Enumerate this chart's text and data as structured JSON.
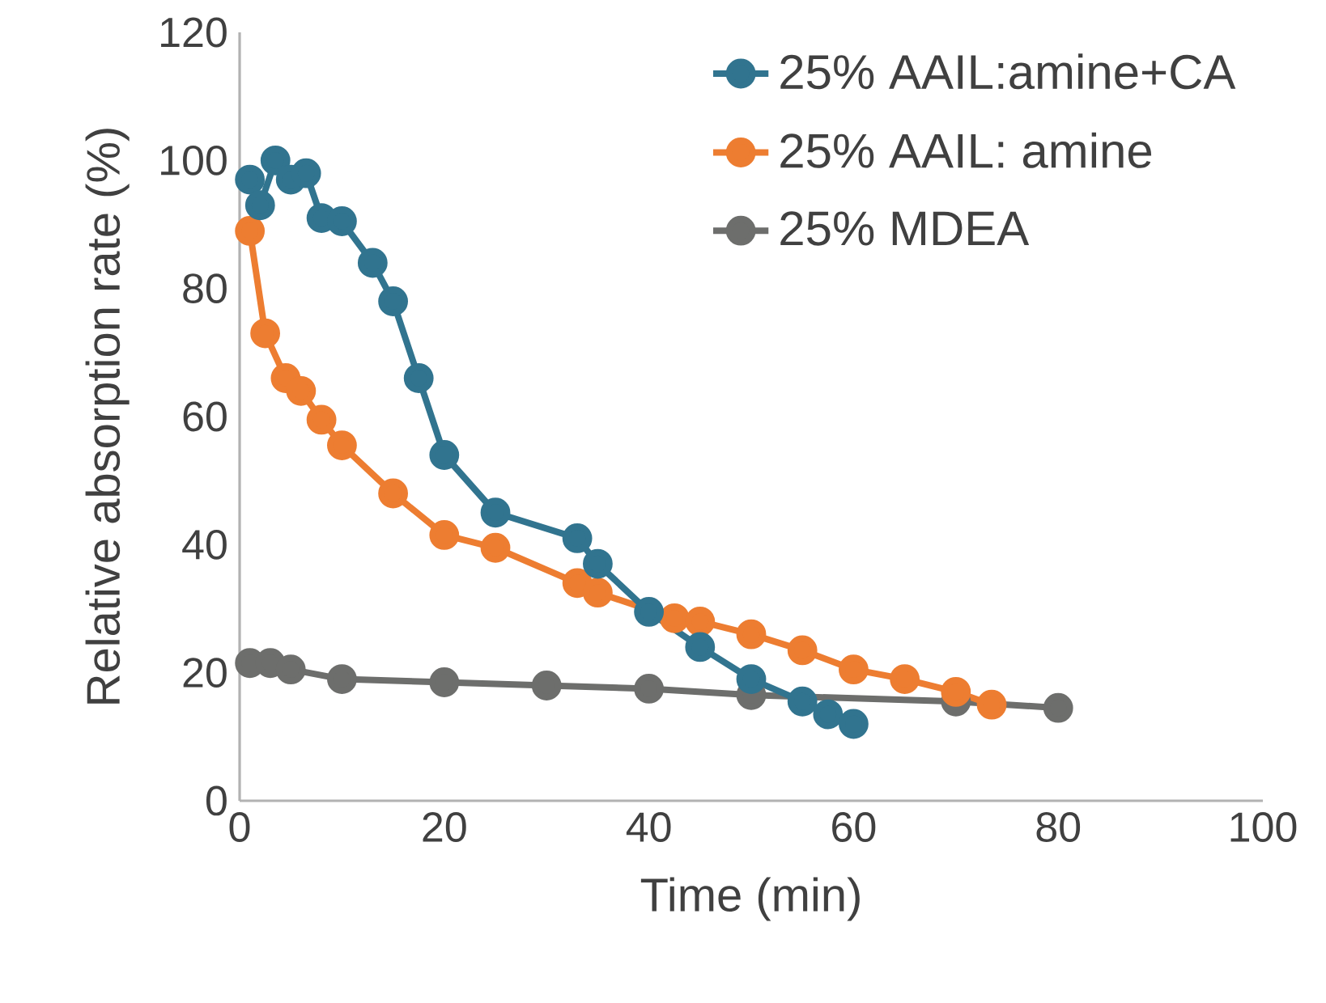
{
  "chart_data": {
    "type": "line",
    "xlabel": "Time (min)",
    "ylabel": "Relative absorption rate (%)",
    "xlim": [
      0,
      100
    ],
    "ylim": [
      0,
      120
    ],
    "xticks": [
      0,
      20,
      40,
      60,
      80,
      100
    ],
    "yticks": [
      0,
      20,
      40,
      60,
      80,
      100,
      120
    ],
    "grid": false,
    "legend": "top right",
    "marker": "circle",
    "line_style": "solid",
    "series": [
      {
        "name": "25% AAIL:amine+CA",
        "color": "#31748f",
        "x": [
          1,
          2,
          3.5,
          5,
          6.5,
          8,
          10,
          13,
          15,
          17.5,
          20,
          25,
          33,
          35,
          40,
          45,
          50,
          55,
          57.5,
          60
        ],
        "values": [
          97,
          93,
          100,
          97,
          98,
          91,
          90.5,
          84,
          78,
          66,
          54,
          45,
          41,
          37,
          29.5,
          24,
          19,
          15.5,
          13.5,
          12
        ]
      },
      {
        "name": "25% AAIL: amine",
        "color": "#ed7d31",
        "x": [
          1,
          2.5,
          4.5,
          6,
          8,
          10,
          15,
          20,
          25,
          33,
          35,
          42.5,
          45,
          50,
          55,
          60,
          65,
          70,
          73.5
        ],
        "values": [
          89,
          73,
          66,
          64,
          59.5,
          55.5,
          48,
          41.5,
          39.5,
          34,
          32.5,
          28.5,
          28,
          26,
          23.5,
          20.5,
          19,
          17,
          15
        ]
      },
      {
        "name": "25% MDEA",
        "color": "#6d6e6c",
        "x": [
          1,
          3,
          5,
          10,
          20,
          30,
          40,
          50,
          70,
          80
        ],
        "values": [
          21.5,
          21.5,
          20.5,
          19,
          18.5,
          18,
          17.5,
          16.5,
          15.5,
          14.5
        ]
      }
    ]
  }
}
